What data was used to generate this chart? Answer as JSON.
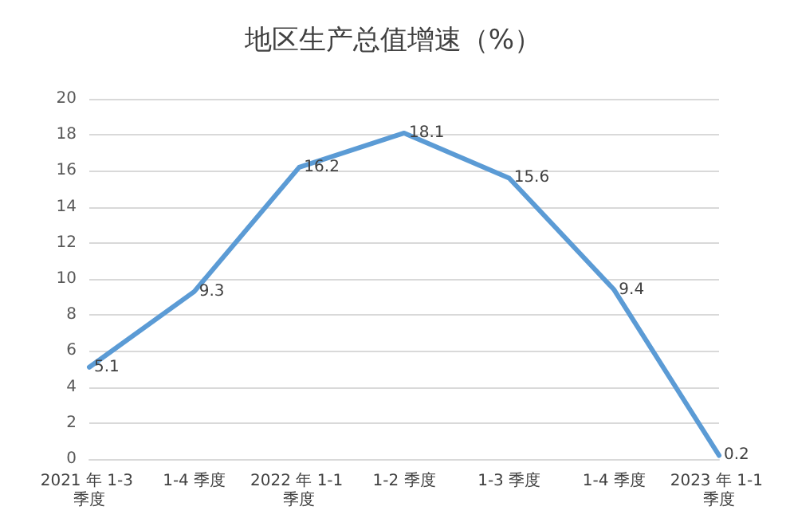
{
  "chart_data": {
    "type": "line",
    "title": "地区生产总值增速（%）",
    "categories": [
      "2021 年 1-3 季度",
      "1-4 季度",
      "2022 年 1-1 季度",
      "1-2 季度",
      "1-3 季度",
      "1-4 季度",
      "2023 年 1-1 季度"
    ],
    "series": [
      {
        "color": "#5b9bd5",
        "values": [
          5.1,
          9.3,
          16.2,
          18.1,
          15.6,
          9.4,
          0.2
        ]
      }
    ],
    "ylim": [
      0,
      20
    ],
    "yticks": [
      0,
      2,
      4,
      6,
      8,
      10,
      12,
      14,
      16,
      18,
      20
    ],
    "grid": "y",
    "data_labels": true,
    "marker": "none",
    "line_style": "solid"
  }
}
